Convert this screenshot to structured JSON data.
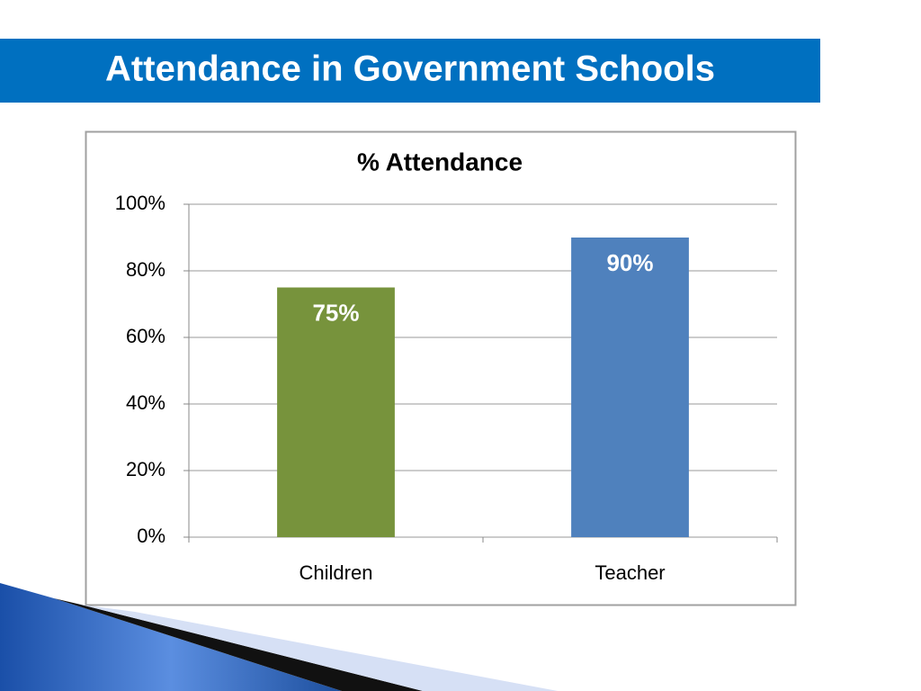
{
  "slide_title": "Attendance in Government Schools",
  "chart_data": {
    "type": "bar",
    "title": "% Attendance",
    "categories": [
      "Children",
      "Teacher"
    ],
    "values": [
      75,
      90
    ],
    "value_labels": [
      "75%",
      "90%"
    ],
    "colors": [
      "#77933c",
      "#4f81bd"
    ],
    "ylim": [
      0,
      100
    ],
    "yticks": [
      {
        "value": 0,
        "label": "0%"
      },
      {
        "value": 20,
        "label": "20%"
      },
      {
        "value": 40,
        "label": "40%"
      },
      {
        "value": 60,
        "label": "60%"
      },
      {
        "value": 80,
        "label": "80%"
      },
      {
        "value": 100,
        "label": "100%"
      }
    ],
    "grid": true
  }
}
